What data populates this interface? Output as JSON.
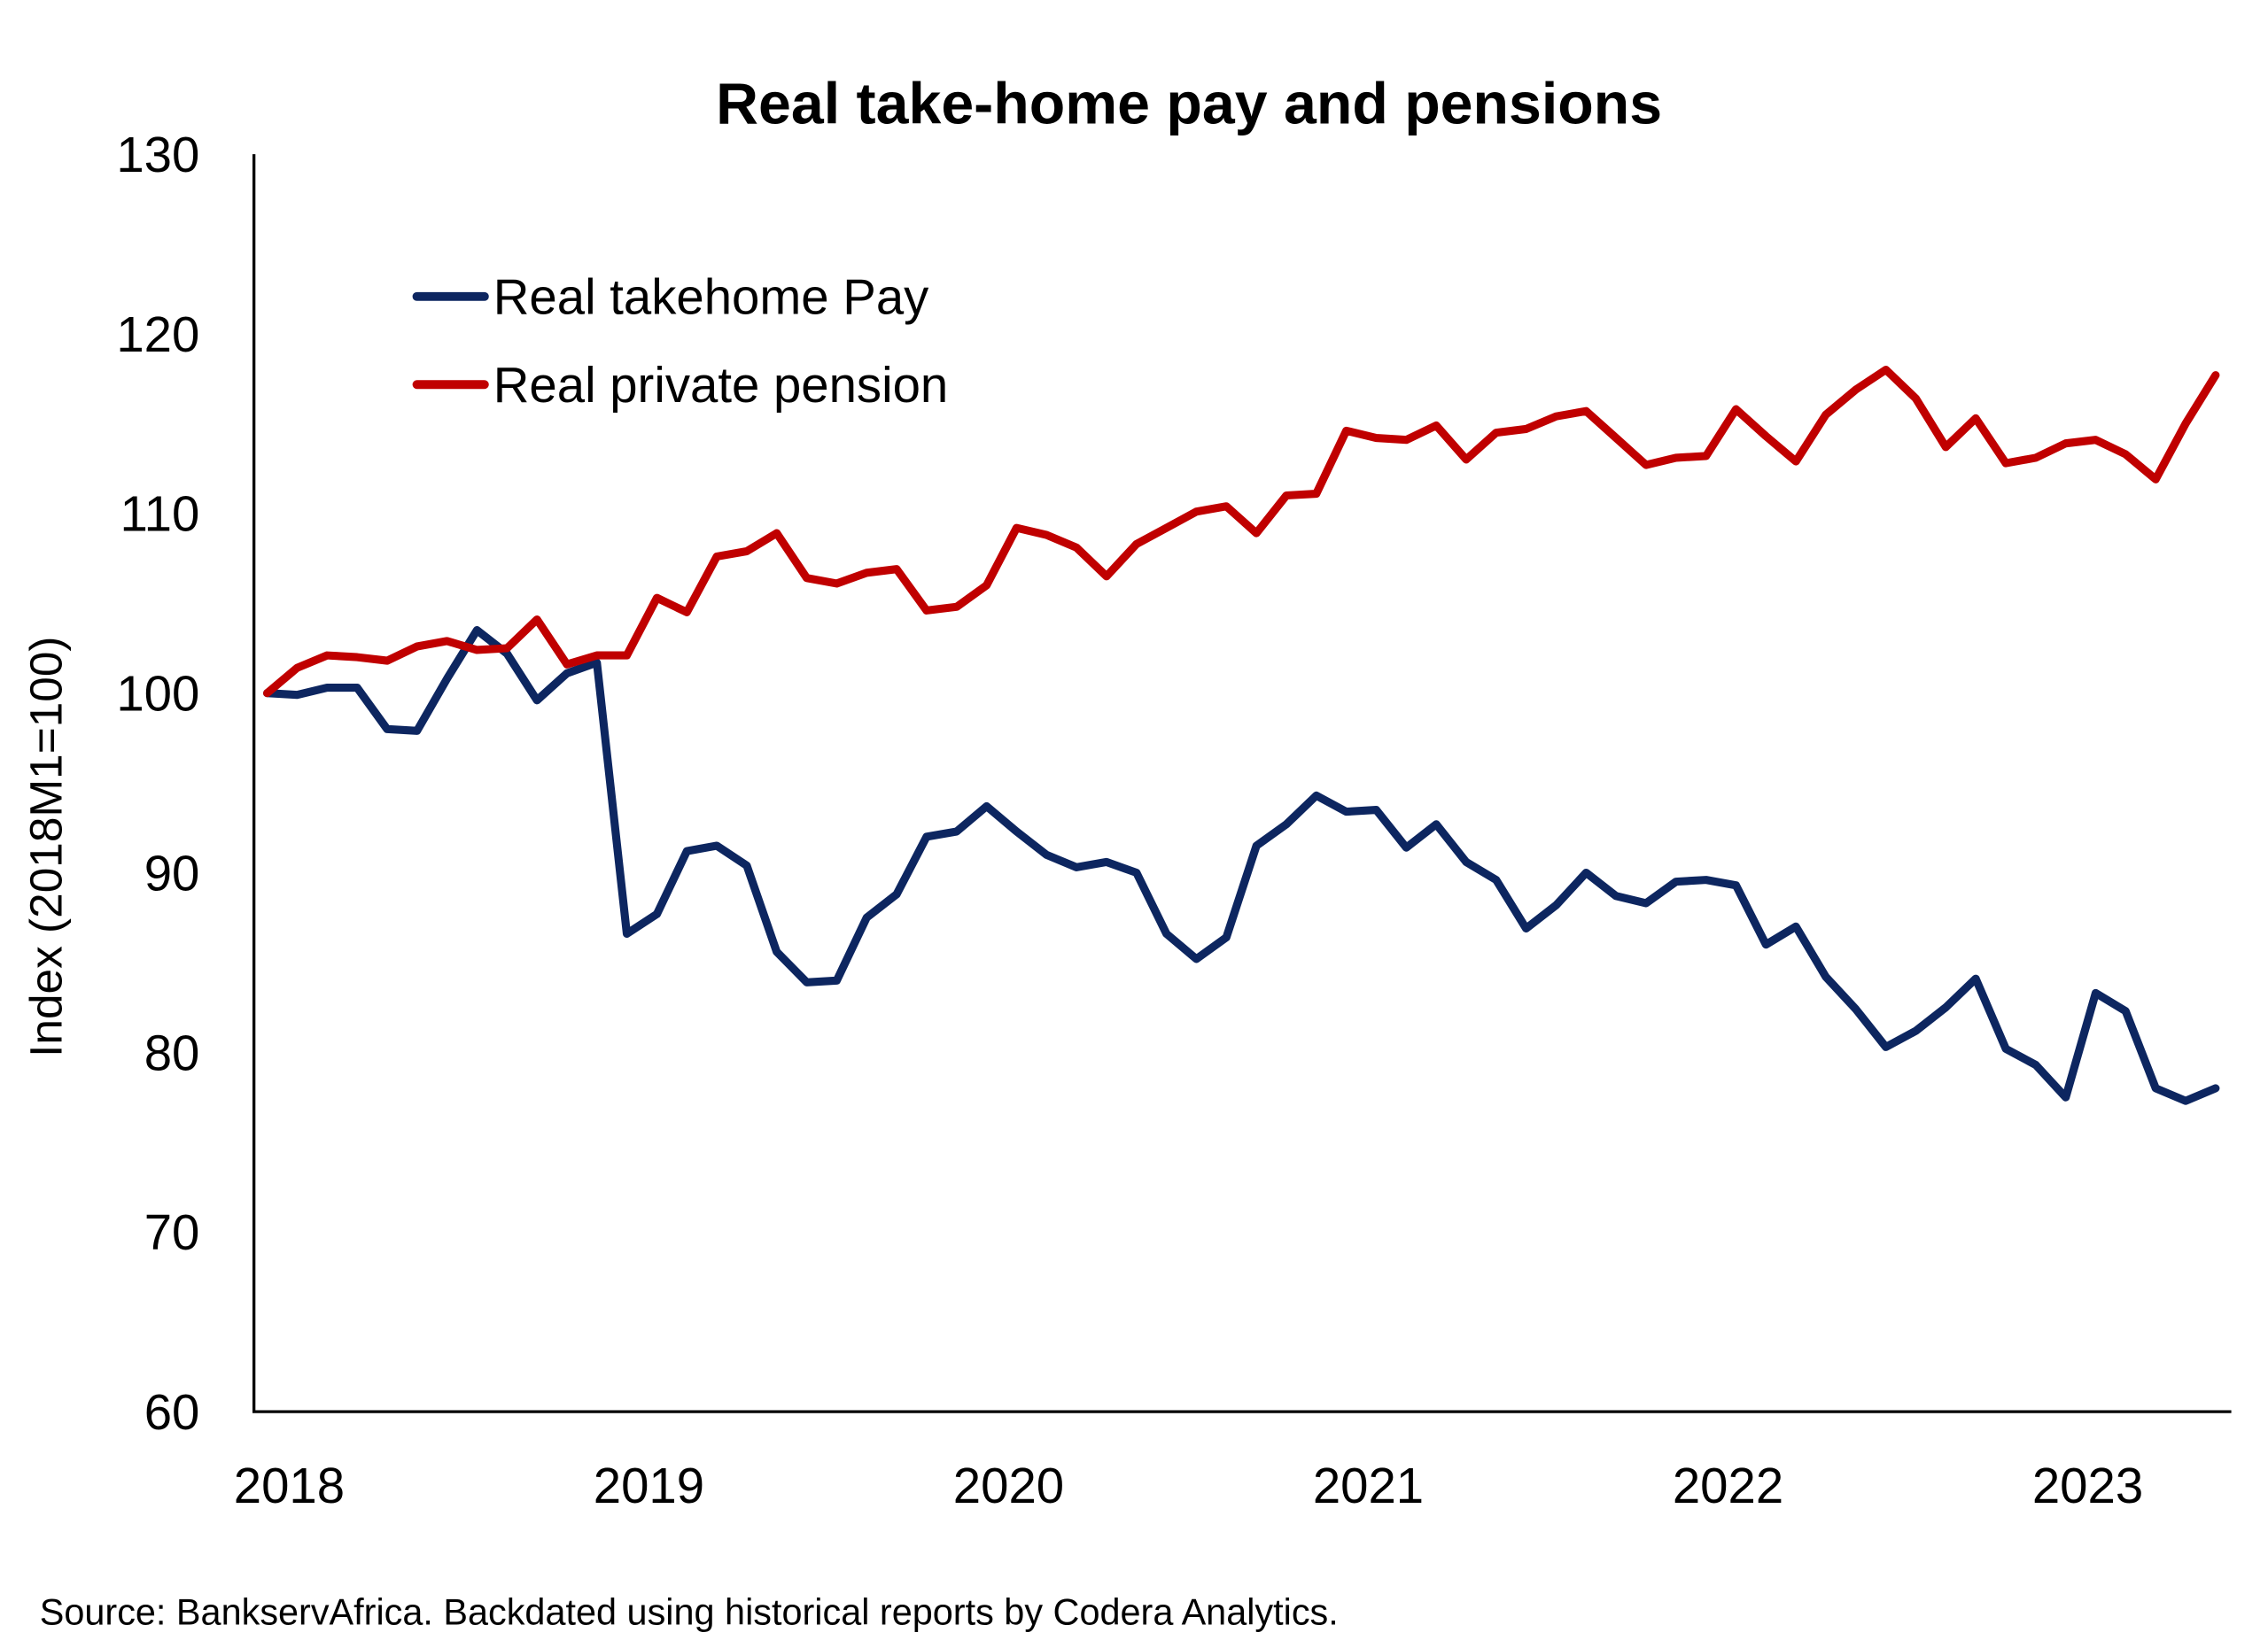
{
  "chart_data": {
    "type": "line",
    "title": "Real take-home pay and pensions",
    "xlabel": "",
    "ylabel": "Index (2018M1=100)",
    "ylim": [
      60,
      130
    ],
    "yticks": [
      "60",
      "70",
      "80",
      "90",
      "100",
      "110",
      "120",
      "130"
    ],
    "xticks": [
      "2018",
      "2019",
      "2020",
      "2021",
      "2022",
      "2023"
    ],
    "x_start": "2018M1",
    "x_end": "2023M6",
    "frequency": "monthly",
    "grid": false,
    "legend_position": "top-left",
    "series": [
      {
        "name": "Real takehome Pay",
        "color": "#0d2660",
        "values": [
          100,
          99.9,
          100.3,
          100.3,
          98,
          97.9,
          100.8,
          103.5,
          102.2,
          99.6,
          101.1,
          101.7,
          86.6,
          87.7,
          91.2,
          91.5,
          90.4,
          85.6,
          83.9,
          84,
          87.5,
          88.8,
          92,
          92.3,
          93.7,
          92.3,
          91,
          90.3,
          90.6,
          90,
          86.6,
          85.2,
          86.4,
          91.5,
          92.7,
          94.3,
          93.4,
          93.5,
          91.4,
          92.7,
          90.6,
          89.6,
          86.9,
          88.2,
          90,
          88.7,
          88.3,
          89.5,
          89.6,
          89.3,
          86,
          87,
          84.2,
          82.4,
          80.3,
          81.2,
          82.5,
          84.1,
          80.2,
          79.3,
          77.5,
          83.3,
          82.3,
          78,
          77.3,
          78
        ]
      },
      {
        "name": "Real private pension",
        "color": "#c00000",
        "values": [
          100,
          101.4,
          102.1,
          102,
          101.8,
          102.6,
          102.9,
          102.4,
          102.5,
          104.1,
          101.6,
          102.1,
          102.1,
          105.3,
          104.5,
          107.6,
          107.9,
          108.9,
          106.4,
          106.1,
          106.7,
          106.9,
          104.6,
          104.8,
          106,
          109.2,
          108.8,
          108.1,
          106.5,
          108.3,
          109.2,
          110.1,
          110.4,
          108.9,
          111,
          111.1,
          114.6,
          114.2,
          114.1,
          114.9,
          113,
          114.5,
          114.7,
          115.4,
          115.7,
          114.2,
          112.7,
          113.1,
          113.2,
          115.8,
          114.3,
          112.9,
          115.5,
          116.9,
          118,
          116.4,
          113.7,
          115.3,
          112.8,
          113.1,
          113.9,
          114.1,
          113.3,
          111.9,
          115,
          117.7
        ]
      }
    ],
    "source": "Source: BankservAfrica. Backdated using historical reports by Codera Analytics."
  }
}
